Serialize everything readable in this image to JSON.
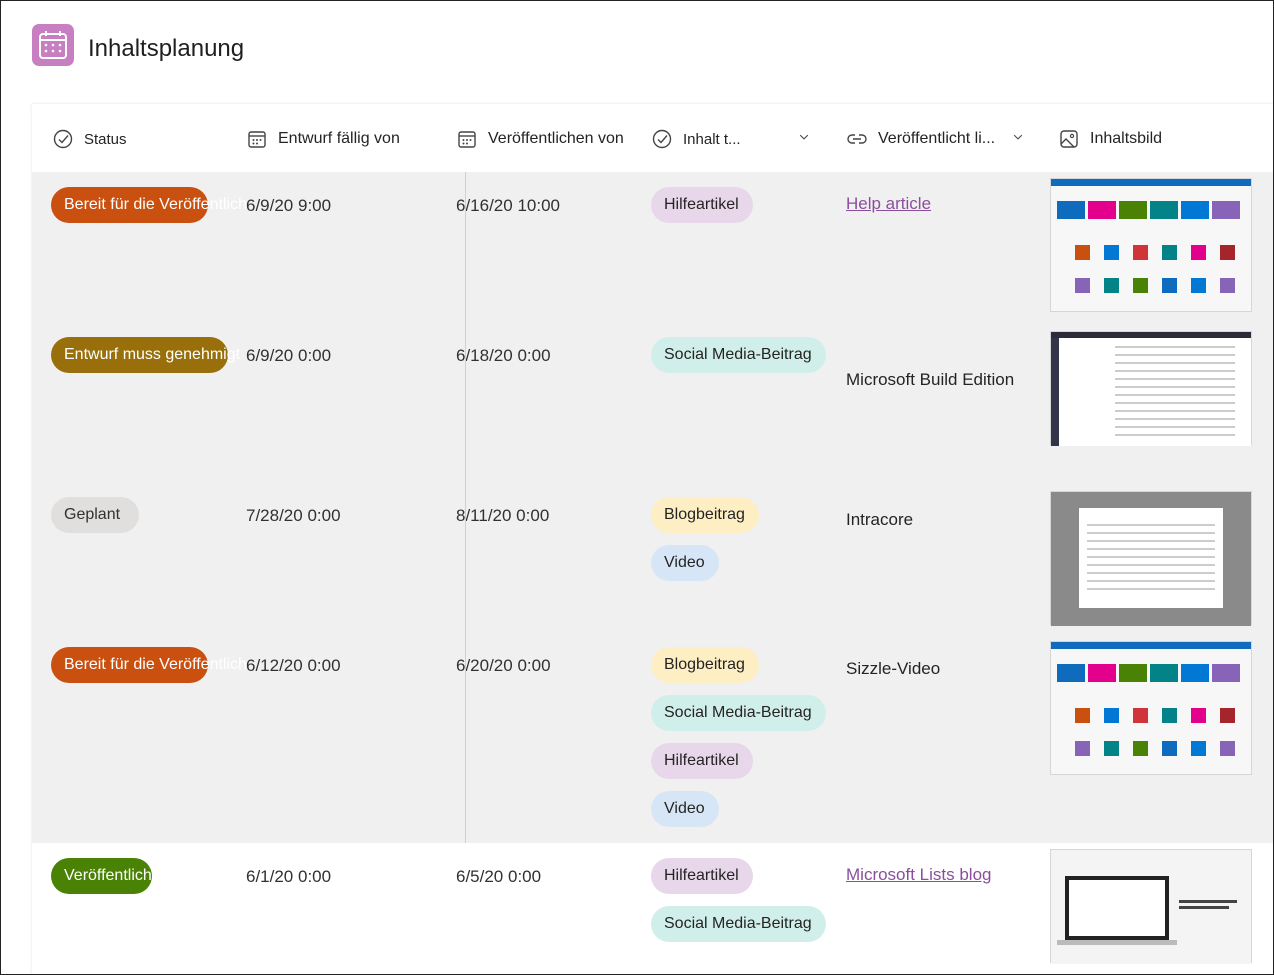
{
  "header": {
    "title": "Inhaltsplanung"
  },
  "table": {
    "columns": [
      "Status",
      "Entwurf fällig von",
      "Veröffentlichen von",
      "Inhalt t...",
      "Veröffentlicht li...",
      "Inhaltsbild"
    ],
    "rows": [
      {
        "status": {
          "label": "Bereit für die Veröffentlich",
          "color": "#ca5010"
        },
        "draft_due": "6/9/20 9:00",
        "publish": "6/16/20 10:00",
        "content_types": [
          "Hilfeartikel"
        ],
        "link": {
          "text": "Help article",
          "is_link": true
        }
      },
      {
        "status": {
          "label": "Entwurf muss genehmigt",
          "color": "#986f0b"
        },
        "draft_due": "6/9/20 0:00",
        "publish": "6/18/20 0:00",
        "content_types": [
          "Social Media-Beitrag"
        ],
        "link": {
          "text": "Microsoft Build Edition",
          "is_link": false
        }
      },
      {
        "status": {
          "label": "Geplant",
          "color": "#e1dfdd"
        },
        "draft_due": "7/28/20 0:00",
        "publish": "8/11/20 0:00",
        "content_types": [
          "Blogbeitrag",
          "Video"
        ],
        "link": {
          "text": "Intracore",
          "is_link": false
        }
      },
      {
        "status": {
          "label": "Bereit für die Veröffentlich",
          "color": "#ca5010"
        },
        "draft_due": "6/12/20 0:00",
        "publish": "6/20/20 0:00",
        "content_types": [
          "Blogbeitrag",
          "Social Media-Beitrag",
          "Hilfeartikel",
          "Video"
        ],
        "link": {
          "text": "Sizzle-Video",
          "is_link": false
        }
      },
      {
        "status": {
          "label": "Veröffentlicht",
          "color": "#498205"
        },
        "draft_due": "6/1/20 0:00",
        "publish": "6/5/20 0:00",
        "content_types": [
          "Hilfeartikel",
          "Social Media-Beitrag"
        ],
        "link": {
          "text": "Microsoft Lists blog",
          "is_link": true
        }
      }
    ]
  }
}
